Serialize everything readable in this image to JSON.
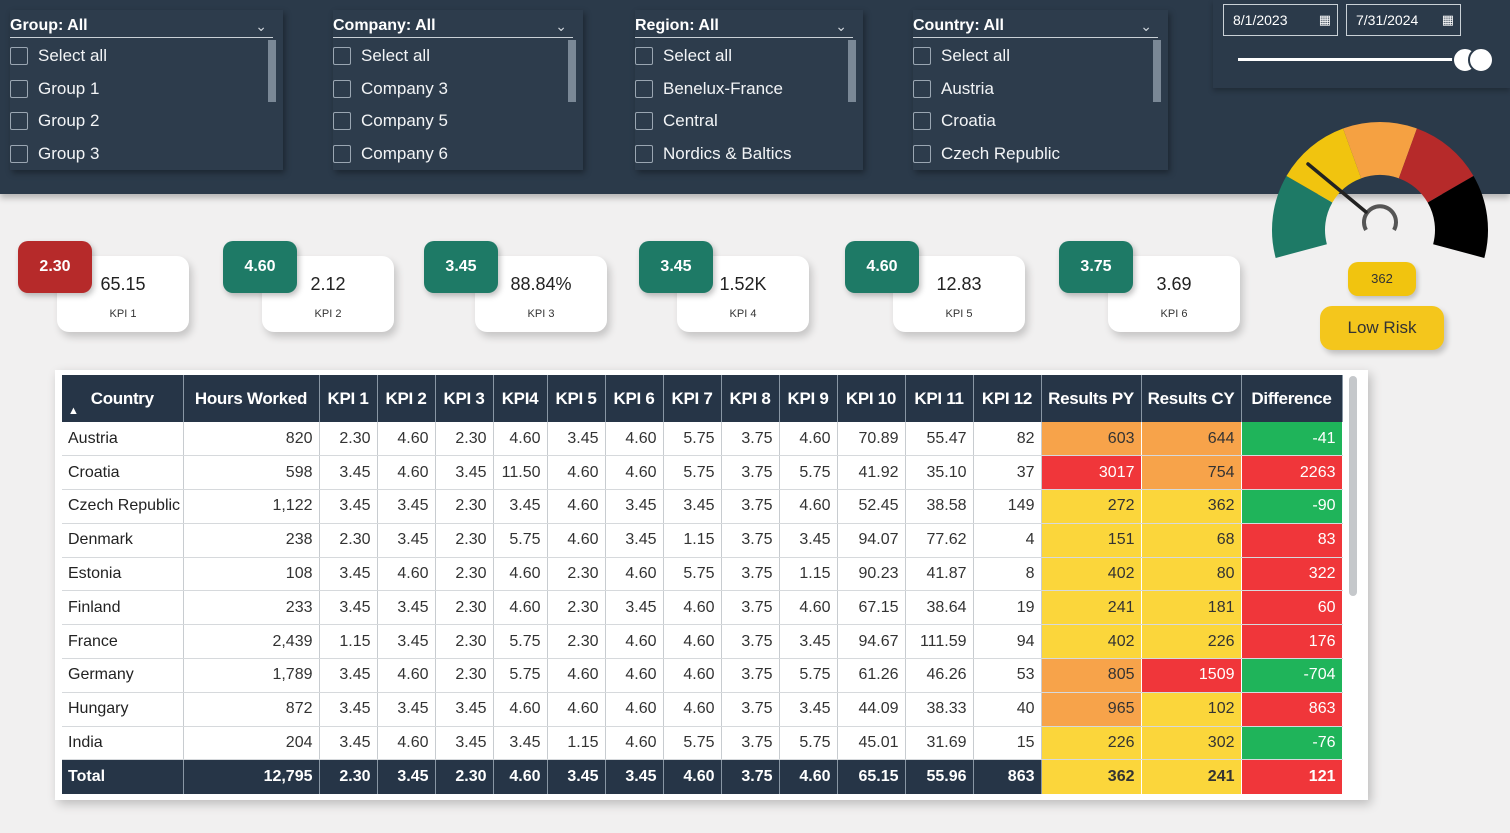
{
  "filters": {
    "group": {
      "title": "Group: All",
      "items": [
        "Select all",
        "Group 1",
        "Group 2",
        "Group 3"
      ]
    },
    "company": {
      "title": "Company: All",
      "items": [
        "Select all",
        "Company 3",
        "Company 5",
        "Company 6"
      ]
    },
    "region": {
      "title": "Region: All",
      "items": [
        "Select all",
        "Benelux-France",
        "Central",
        "Nordics & Baltics"
      ]
    },
    "country": {
      "title": "Country: All",
      "items": [
        "Select all",
        "Austria",
        "Croatia",
        "Czech Republic"
      ]
    }
  },
  "date_range": {
    "start": "8/1/2023",
    "end": "7/31/2024"
  },
  "icons": {
    "dropdown": "chevron-down-icon",
    "calendar": "calendar-icon"
  },
  "kpis": [
    {
      "badge": "2.30",
      "badge_color": "#b62a2a",
      "value": "65.15",
      "label": "KPI 1"
    },
    {
      "badge": "4.60",
      "badge_color": "#1e7a66",
      "value": "2.12",
      "label": "KPI 2"
    },
    {
      "badge": "3.45",
      "badge_color": "#1e7a66",
      "value": "88.84%",
      "label": "KPI 3"
    },
    {
      "badge": "3.45",
      "badge_color": "#1e7a66",
      "value": "1.52K",
      "label": "KPI 4"
    },
    {
      "badge": "4.60",
      "badge_color": "#1e7a66",
      "value": "12.83",
      "label": "KPI 5"
    },
    {
      "badge": "3.75",
      "badge_color": "#1e7a66",
      "value": "3.69",
      "label": "KPI 6"
    }
  ],
  "gauge": {
    "value": "362",
    "risk": "Low Risk",
    "colors": [
      "#1e7a66",
      "#f1c40f",
      "#f5a142",
      "#b62a2a",
      "#000000"
    ]
  },
  "table": {
    "headers": [
      "Country",
      "Hours Worked",
      "KPI 1",
      "KPI 2",
      "KPI 3",
      "KPI4",
      "KPI 5",
      "KPI 6",
      "KPI 7",
      "KPI 8",
      "KPI 9",
      "KPI 10",
      "KPI 11",
      "KPI 12",
      "Results PY",
      "Results CY",
      "Difference"
    ],
    "rows": [
      {
        "cells": [
          "Austria",
          "820",
          "2.30",
          "4.60",
          "2.30",
          "4.60",
          "3.45",
          "4.60",
          "5.75",
          "3.75",
          "4.60",
          "70.89",
          "55.47",
          "82",
          "603",
          "644",
          "-41"
        ],
        "colors": [
          "#f7a34a",
          "#f7a34a",
          "#1fb45a"
        ]
      },
      {
        "cells": [
          "Croatia",
          "598",
          "3.45",
          "4.60",
          "3.45",
          "11.50",
          "4.60",
          "4.60",
          "5.75",
          "3.75",
          "5.75",
          "41.92",
          "35.10",
          "37",
          "3017",
          "754",
          "2263"
        ],
        "colors": [
          "#f0363a",
          "#f7a34a",
          "#f0363a"
        ]
      },
      {
        "cells": [
          "Czech Republic",
          "1,122",
          "3.45",
          "3.45",
          "2.30",
          "3.45",
          "4.60",
          "3.45",
          "3.45",
          "3.75",
          "4.60",
          "52.45",
          "38.58",
          "149",
          "272",
          "362",
          "-90"
        ],
        "colors": [
          "#fbd63b",
          "#fbd63b",
          "#1fb45a"
        ]
      },
      {
        "cells": [
          "Denmark",
          "238",
          "2.30",
          "3.45",
          "2.30",
          "5.75",
          "4.60",
          "3.45",
          "1.15",
          "3.75",
          "3.45",
          "94.07",
          "77.62",
          "4",
          "151",
          "68",
          "83"
        ],
        "colors": [
          "#fbd63b",
          "#fbd63b",
          "#f0363a"
        ]
      },
      {
        "cells": [
          "Estonia",
          "108",
          "3.45",
          "4.60",
          "2.30",
          "4.60",
          "2.30",
          "4.60",
          "5.75",
          "3.75",
          "1.15",
          "90.23",
          "41.87",
          "8",
          "402",
          "80",
          "322"
        ],
        "colors": [
          "#fbd63b",
          "#fbd63b",
          "#f0363a"
        ]
      },
      {
        "cells": [
          "Finland",
          "233",
          "3.45",
          "3.45",
          "2.30",
          "4.60",
          "2.30",
          "3.45",
          "4.60",
          "3.75",
          "4.60",
          "67.15",
          "38.64",
          "19",
          "241",
          "181",
          "60"
        ],
        "colors": [
          "#fbd63b",
          "#fbd63b",
          "#f0363a"
        ]
      },
      {
        "cells": [
          "France",
          "2,439",
          "1.15",
          "3.45",
          "2.30",
          "5.75",
          "2.30",
          "4.60",
          "4.60",
          "3.75",
          "3.45",
          "94.67",
          "111.59",
          "94",
          "402",
          "226",
          "176"
        ],
        "colors": [
          "#fbd63b",
          "#fbd63b",
          "#f0363a"
        ]
      },
      {
        "cells": [
          "Germany",
          "1,789",
          "3.45",
          "4.60",
          "2.30",
          "5.75",
          "4.60",
          "4.60",
          "4.60",
          "3.75",
          "5.75",
          "61.26",
          "46.26",
          "53",
          "805",
          "1509",
          "-704"
        ],
        "colors": [
          "#f7a34a",
          "#f0363a",
          "#1fb45a"
        ]
      },
      {
        "cells": [
          "Hungary",
          "872",
          "3.45",
          "3.45",
          "3.45",
          "4.60",
          "4.60",
          "4.60",
          "4.60",
          "3.75",
          "3.45",
          "44.09",
          "38.33",
          "40",
          "965",
          "102",
          "863"
        ],
        "colors": [
          "#f7a34a",
          "#fbd63b",
          "#f0363a"
        ]
      },
      {
        "cells": [
          "India",
          "204",
          "3.45",
          "4.60",
          "3.45",
          "3.45",
          "1.15",
          "4.60",
          "5.75",
          "3.75",
          "5.75",
          "45.01",
          "31.69",
          "15",
          "226",
          "302",
          "-76"
        ],
        "colors": [
          "#fbd63b",
          "#fbd63b",
          "#1fb45a"
        ]
      }
    ],
    "total": {
      "cells": [
        "Total",
        "12,795",
        "2.30",
        "3.45",
        "2.30",
        "4.60",
        "3.45",
        "3.45",
        "4.60",
        "3.75",
        "4.60",
        "65.15",
        "55.96",
        "863",
        "362",
        "241",
        "121"
      ],
      "colors": [
        "#fbd63b",
        "#fbd63b",
        "#f0363a"
      ]
    }
  }
}
